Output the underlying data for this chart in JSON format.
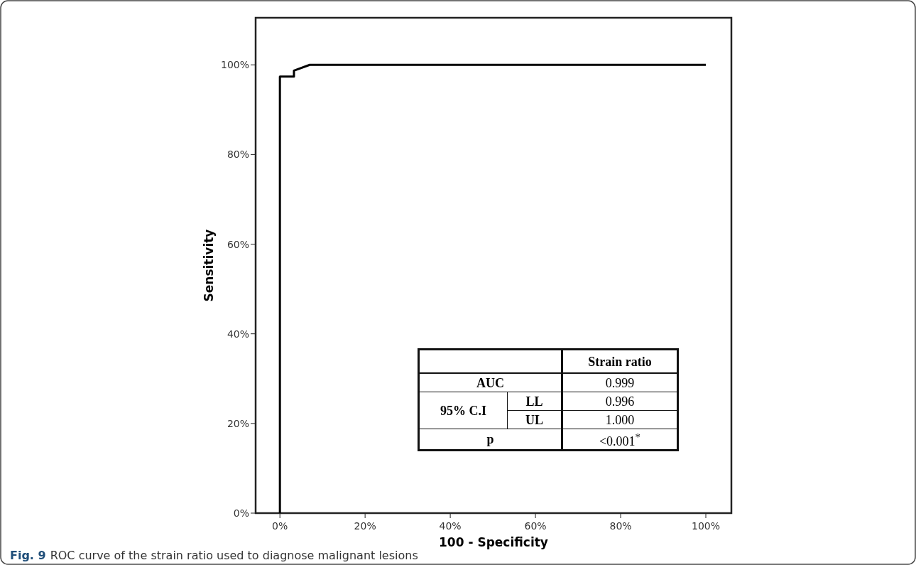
{
  "chart_data": {
    "type": "line",
    "xlabel": "100 - Specificity",
    "ylabel": "Sensitivity",
    "x": [
      0,
      0,
      3.3,
      3.3,
      7,
      100
    ],
    "series": [
      {
        "color": "#000000",
        "values": [
          0,
          97.4,
          97.4,
          98.7,
          100,
          100
        ]
      }
    ],
    "xlim": [
      -5.7,
      106
    ],
    "ylim": [
      0,
      110.5
    ],
    "xticks": [
      {
        "value": 0,
        "label": "0%"
      },
      {
        "value": 20,
        "label": "20%"
      },
      {
        "value": 40,
        "label": "40%"
      },
      {
        "value": 60,
        "label": "60%"
      },
      {
        "value": 80,
        "label": "80%"
      },
      {
        "value": 100,
        "label": "100%"
      }
    ],
    "yticks": [
      {
        "value": 0,
        "label": "0%"
      },
      {
        "value": 20,
        "label": "20%"
      },
      {
        "value": 40,
        "label": "40%"
      },
      {
        "value": 60,
        "label": "60%"
      },
      {
        "value": 80,
        "label": "80%"
      },
      {
        "value": 100,
        "label": "100%"
      }
    ],
    "grid": false,
    "marker": "none",
    "line_style": "solid",
    "annotations": [
      "Strain ratio",
      "AUC",
      "0.999",
      "95% C.I",
      "LL",
      "0.996",
      "UL",
      "1.000",
      "p",
      "<0.001$^{*}$",
      "Fig. 9",
      "ROC curve of the strain ratio used to diagnose malignant lesions"
    ]
  }
}
